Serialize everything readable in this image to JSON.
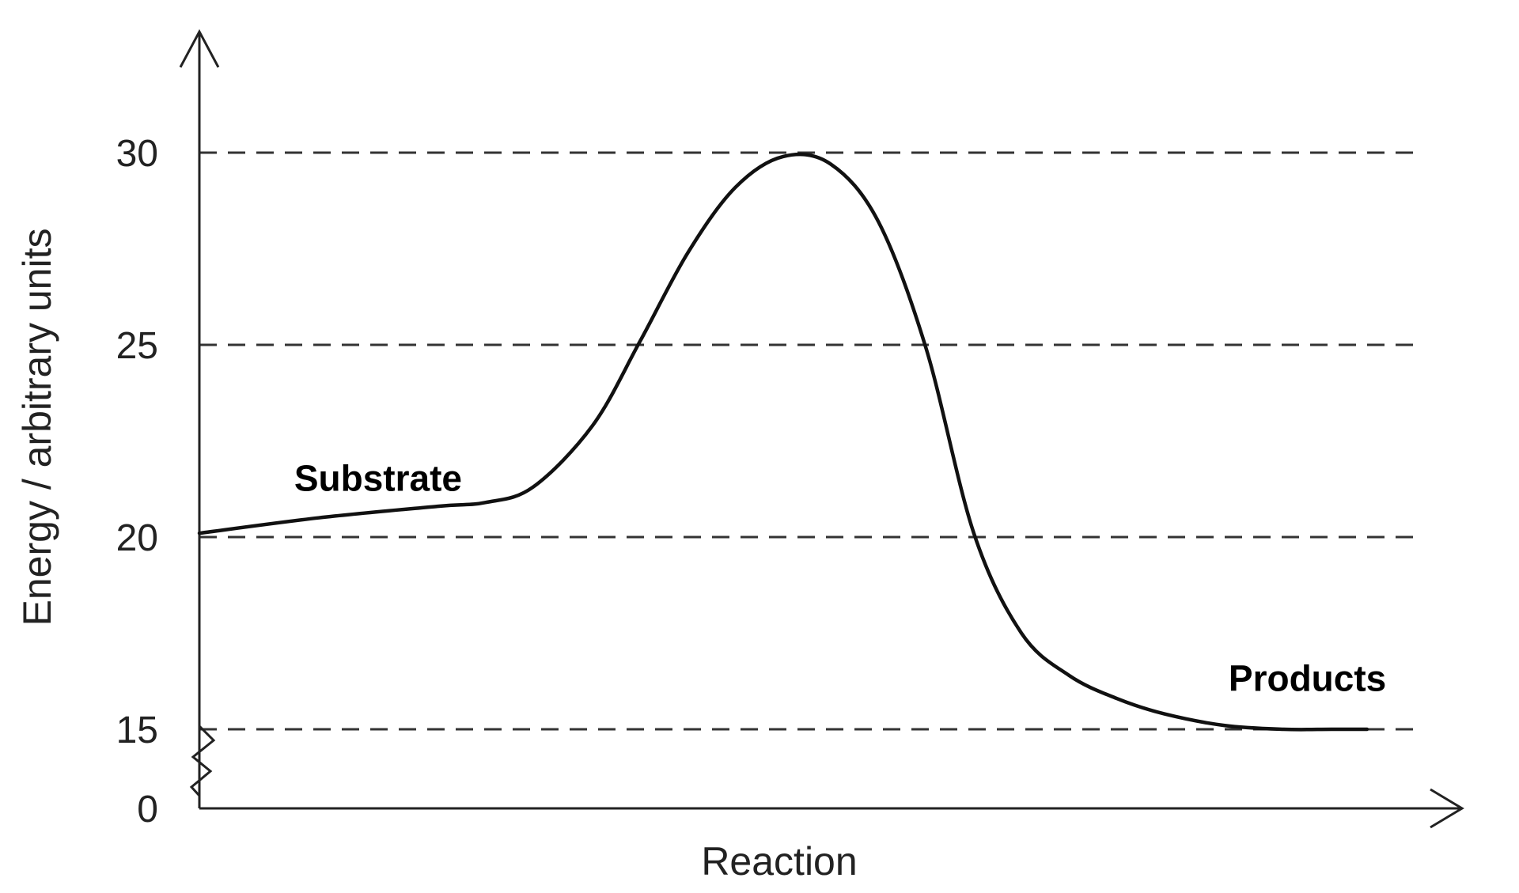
{
  "chart_data": {
    "type": "line",
    "xlabel": "Reaction",
    "ylabel": "Energy / arbitrary units",
    "y_ticks": [
      "0",
      "15",
      "20",
      "25",
      "30"
    ],
    "grid_values": [
      15,
      20,
      25,
      30
    ],
    "y_axis_break": true,
    "annotations": [
      {
        "text": "Substrate",
        "x": 0.15,
        "y": 21.2
      },
      {
        "text": "Products",
        "x": 0.93,
        "y": 16.0
      }
    ],
    "series": [
      {
        "x": [
          0.0,
          0.1,
          0.2,
          0.24,
          0.28,
          0.33,
          0.37,
          0.41,
          0.45,
          0.49,
          0.53,
          0.57,
          0.61,
          0.65,
          0.69,
          0.73,
          0.77,
          0.81,
          0.86,
          0.91,
          0.95,
          0.98
        ],
        "y": [
          20.1,
          20.5,
          20.8,
          20.9,
          21.3,
          22.9,
          25.1,
          27.4,
          29.1,
          29.9,
          29.7,
          28.2,
          24.9,
          20.1,
          17.5,
          16.4,
          15.8,
          15.4,
          15.1,
          15.0,
          15.0,
          15.0
        ]
      }
    ],
    "colors": {
      "line": "#111111",
      "grid": "#333333",
      "text": "#222222"
    }
  }
}
